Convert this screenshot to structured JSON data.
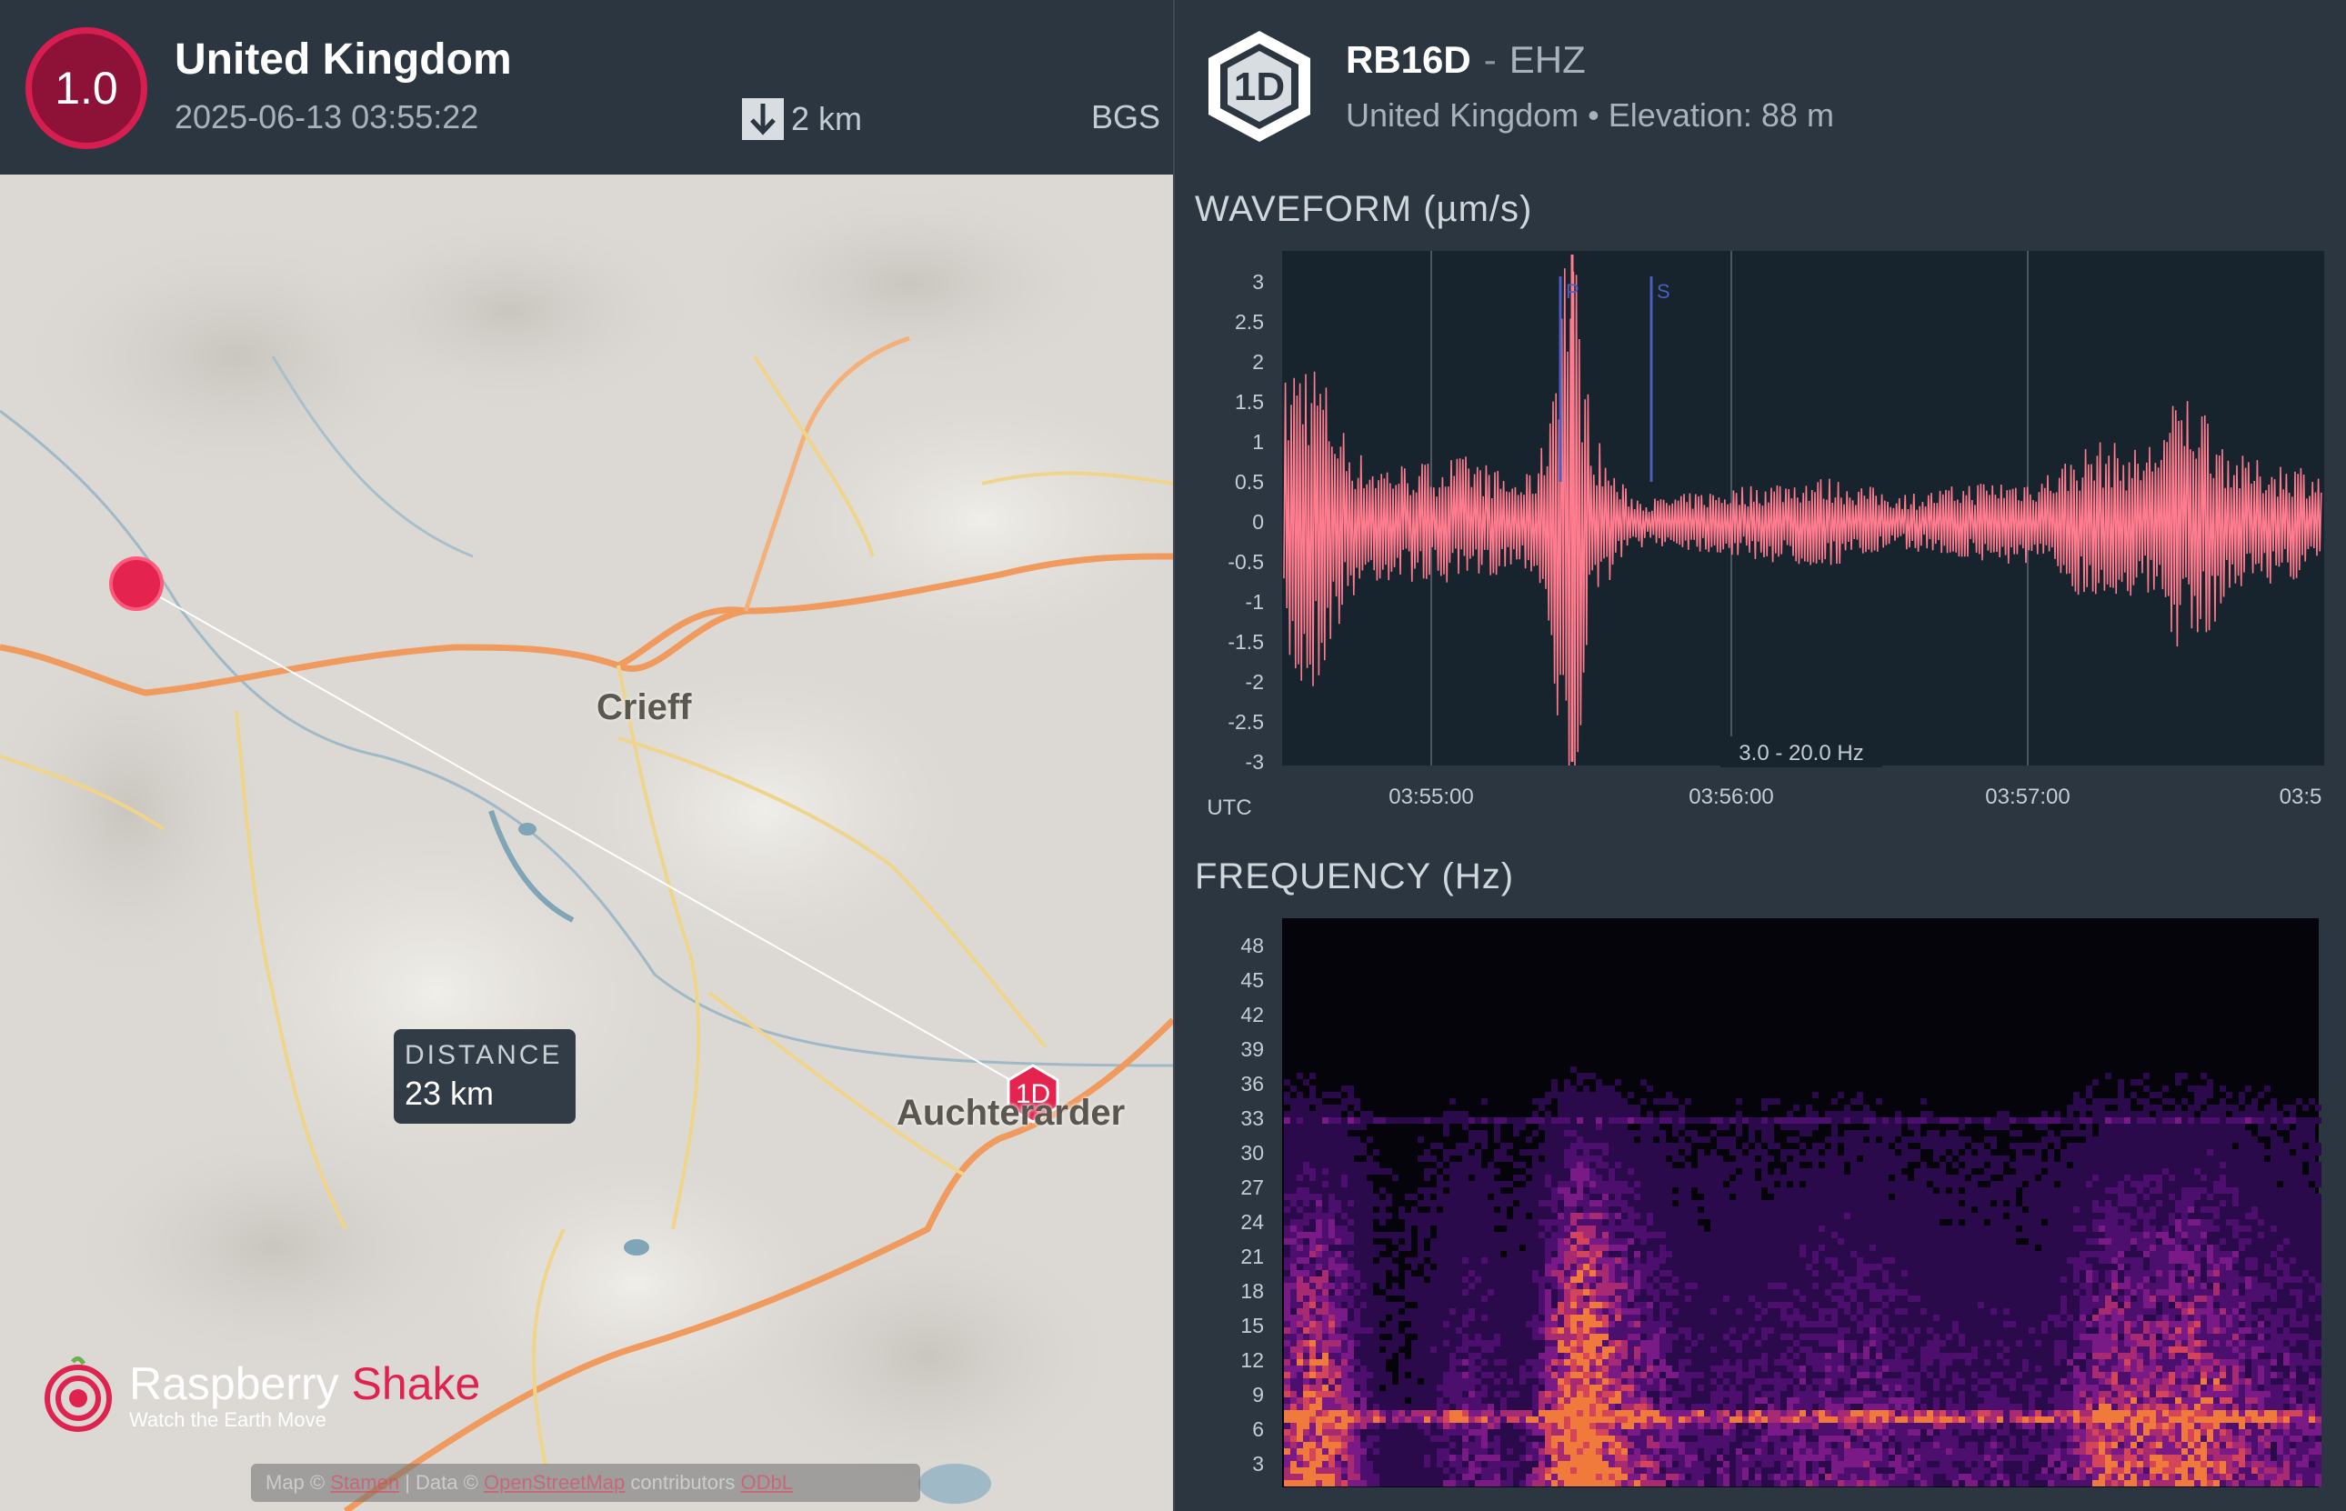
{
  "event": {
    "magnitude": "1.0",
    "region": "United Kingdom",
    "datetime": "2025-06-13 03:55:22",
    "depth": "2 km",
    "source": "BGS",
    "icon": "arrow-down-icon"
  },
  "map": {
    "places": [
      "Crieff",
      "Auchterarder"
    ],
    "distance_label": "DISTANCE",
    "distance_value": "23 km",
    "station_marker": "1D",
    "logo": {
      "name_part1": "Raspberry",
      "name_part2": "Shake",
      "tagline": "Watch the Earth Move"
    },
    "attribution": {
      "map_prefix": "Map ©",
      "map_link": "Stamen",
      "data_prefix": "| Data ©",
      "data_link": "OpenStreetMap",
      "suffix": "contributors",
      "suffix_link": "ODbL"
    }
  },
  "station": {
    "badge": "1D",
    "code": "RB16D",
    "separator": "-",
    "channel": "EHZ",
    "region": "United Kingdom",
    "bullet": "•",
    "elevation": "Elevation: 88 m"
  },
  "waveform": {
    "title": "WAVEFORM (µm/s)",
    "filter": "3.0 - 20.0 Hz",
    "timezone": "UTC",
    "x_ticks": [
      "03:55:00",
      "03:56:00",
      "03:57:00",
      "03:5"
    ],
    "y_ticks": [
      "3",
      "2.5",
      "2",
      "1.5",
      "1",
      "0.5",
      "0",
      "-0.5",
      "-1",
      "-1.5",
      "-2",
      "-2.5",
      "-3"
    ],
    "phase_labels": [
      "P",
      "S"
    ],
    "colors": {
      "trace": "#ff7b8e",
      "phase": "#4a5fc0",
      "bg": "#17232d"
    }
  },
  "frequency": {
    "title": "FREQUENCY (Hz)",
    "y_ticks": [
      "48",
      "45",
      "42",
      "39",
      "36",
      "33",
      "30",
      "27",
      "24",
      "21",
      "18",
      "15",
      "12",
      "9",
      "6",
      "3"
    ]
  },
  "chart_data": [
    {
      "type": "line",
      "title": "WAVEFORM (µm/s)",
      "ylabel": "µm/s",
      "xlabel": "UTC",
      "ylim": [
        -3,
        3
      ],
      "x_ticks": [
        "03:55:00",
        "03:56:00",
        "03:57:00"
      ],
      "annotations": [
        {
          "label": "P",
          "time": "03:55:27"
        },
        {
          "label": "S",
          "time": "03:55:38"
        }
      ],
      "filter": "3.0 - 20.0 Hz"
    },
    {
      "type": "heatmap",
      "title": "FREQUENCY (Hz)",
      "ylabel": "Hz",
      "ylim": [
        0,
        50
      ]
    }
  ]
}
